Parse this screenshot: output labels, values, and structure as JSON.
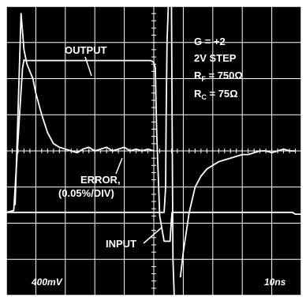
{
  "chart_data": {
    "type": "line",
    "title": "",
    "xlabel": "",
    "ylabel": "",
    "grid": true,
    "divisions": {
      "x": 10,
      "y": 8
    },
    "scale": {
      "vertical": "400mV",
      "horizontal": "10ns"
    },
    "settings": {
      "gain": "G = +2",
      "step": "2V STEP",
      "rf_prefix": "R",
      "rf_sub": "F",
      "rf_value": " = 750Ω",
      "rc_prefix": "R",
      "rc_sub": "C",
      "rc_value": " = 75Ω"
    },
    "annotations": {
      "output": "OUTPUT",
      "error_line1": "ERROR,",
      "error_line2": "(0.05%/DIV)",
      "input": "INPUT"
    },
    "xlim": [
      0,
      10
    ],
    "ylim": [
      0,
      8
    ],
    "series": [
      {
        "key": "output",
        "x": [
          0.0,
          0.25,
          0.45,
          0.55,
          0.6,
          0.62,
          1.0,
          2.0,
          3.0,
          4.0,
          4.9,
          5.0,
          5.05,
          5.1,
          5.2,
          5.35,
          5.55,
          5.6,
          5.62,
          5.7,
          6.0,
          7.0,
          8.0,
          9.0,
          9.7,
          9.8,
          10.0
        ],
        "y": [
          2.3,
          2.35,
          5.0,
          6.3,
          6.52,
          6.5,
          6.5,
          6.5,
          6.5,
          6.5,
          6.5,
          6.45,
          6.3,
          4.5,
          2.2,
          1.5,
          1.5,
          2.1,
          2.3,
          2.3,
          2.3,
          2.3,
          2.3,
          2.3,
          2.3,
          2.25,
          2.25
        ]
      },
      {
        "key": "input",
        "x": [
          0.0,
          5.35,
          5.4,
          5.42,
          5.45,
          5.5,
          5.6,
          5.7,
          10.0
        ],
        "y": [
          2.3,
          2.3,
          3.0,
          5.0,
          7.0,
          8.2,
          8.2,
          8.2,
          8.2
        ]
      },
      {
        "key": "input_falling",
        "x": [
          5.6,
          5.62,
          5.65,
          5.7
        ],
        "y": [
          8.2,
          5.0,
          1.0,
          -0.2
        ]
      },
      {
        "key": "error",
        "x": [
          0.3,
          0.5,
          0.6,
          0.7,
          0.8,
          0.9,
          1.0,
          1.2,
          1.4,
          1.6,
          1.8,
          2.0,
          2.2,
          2.4,
          2.6,
          2.8,
          3.0,
          3.2,
          3.4,
          3.6,
          3.8,
          4.0,
          4.2,
          4.4,
          4.6,
          4.8,
          5.0
        ],
        "y": [
          2.5,
          7.8,
          6.8,
          6.4,
          6.2,
          6.0,
          5.6,
          5.0,
          4.5,
          4.2,
          4.1,
          4.05,
          4.0,
          3.95,
          4.05,
          4.1,
          4.0,
          4.05,
          4.1,
          4.0,
          4.05,
          4.1,
          4.0,
          4.05,
          4.0,
          4.05,
          4.0
        ]
      },
      {
        "key": "error_after",
        "x": [
          5.9,
          6.0,
          6.2,
          6.4,
          6.6,
          6.8,
          7.0,
          7.2,
          7.4,
          7.6,
          7.8,
          8.0,
          8.2,
          8.4,
          8.6,
          8.8,
          9.0,
          9.2,
          9.4,
          9.6,
          9.8
        ],
        "y": [
          0.5,
          1.2,
          2.3,
          3.0,
          3.3,
          3.5,
          3.6,
          3.7,
          3.75,
          3.8,
          3.85,
          3.9,
          3.9,
          3.95,
          4.0,
          4.0,
          3.95,
          4.0,
          4.05,
          4.0,
          4.0
        ]
      }
    ]
  }
}
